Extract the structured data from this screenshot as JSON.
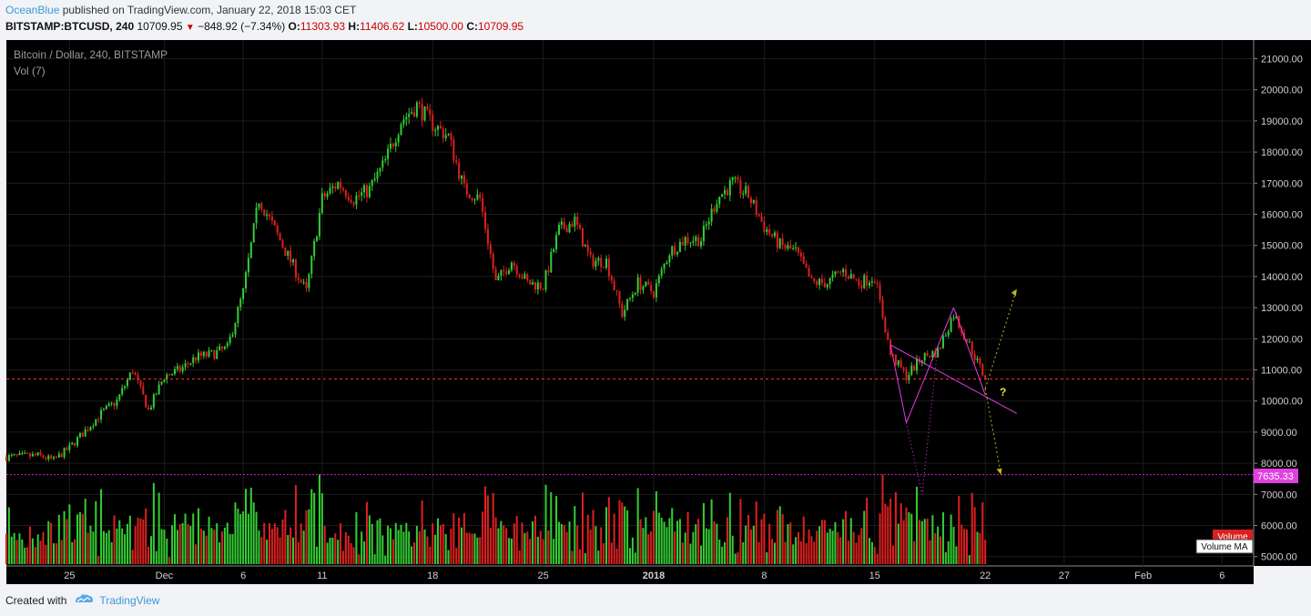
{
  "header": {
    "author": "OceanBlue",
    "published": "published on TradingView.com, January 22, 2018 15:03 CET",
    "symbol": "BITSTAMP:BTCUSD, 240",
    "last": "10709.95",
    "change_arrow": "▼",
    "change": "−848.92 (−7.34%)",
    "o_label": "O:",
    "o_value": "11303.93",
    "h_label": "H:",
    "h_value": "11406.62",
    "l_label": "L:",
    "l_value": "10500.00",
    "c_label": "C:",
    "c_value": "10709.95"
  },
  "legend": {
    "series": "Bitcoin / Dollar, 240, BITSTAMP",
    "volume": "Vol (7)"
  },
  "badges": {
    "support_price": "7635.33",
    "volume": "Volume",
    "volume_ma": "Volume MA"
  },
  "annotation": {
    "question": "?"
  },
  "footer": {
    "created": "Created with",
    "brand": "TradingView"
  },
  "colors": {
    "background": "#000000",
    "up": "#33cc33",
    "down": "#dd1f1f",
    "grid": "#1c1c1c",
    "current_price_line": "#ff2a2a",
    "support_line": "#cc22cc",
    "pattern": "#e23ee2",
    "projection": "#b8b818"
  },
  "chart_data": {
    "type": "candlestick",
    "interval": "240",
    "ylim": [
      4700,
      21600
    ],
    "y_ticks": [
      5000,
      6000,
      7000,
      8000,
      9000,
      10000,
      11000,
      12000,
      13000,
      14000,
      15000,
      16000,
      17000,
      18000,
      19000,
      20000,
      21000
    ],
    "y_tick_labels": [
      "5000.00",
      "6000.00",
      "7000.00",
      "8000.00",
      "9000.00",
      "10000.00",
      "11000.00",
      "12000.00",
      "13000.00",
      "14000.00",
      "15000.00",
      "16000.00",
      "17000.00",
      "18000.00",
      "19000.00",
      "20000.00",
      "21000.00"
    ],
    "x_range": [
      "2017-11-21",
      "2018-02-08"
    ],
    "x_ticks": [
      {
        "date": "2017-11-25",
        "label": "25"
      },
      {
        "date": "2017-12-01",
        "label": "Dec"
      },
      {
        "date": "2017-12-06",
        "label": "6"
      },
      {
        "date": "2017-12-11",
        "label": "11"
      },
      {
        "date": "2017-12-18",
        "label": "18"
      },
      {
        "date": "2017-12-25",
        "label": "25"
      },
      {
        "date": "2018-01-01",
        "label": "2018"
      },
      {
        "date": "2018-01-08",
        "label": "8"
      },
      {
        "date": "2018-01-15",
        "label": "15"
      },
      {
        "date": "2018-01-22",
        "label": "22"
      },
      {
        "date": "2018-01-27",
        "label": "27"
      },
      {
        "date": "2018-02-01",
        "label": "Feb"
      },
      {
        "date": "2018-02-06",
        "label": "6"
      }
    ],
    "price_path": [
      [
        "2017-11-21",
        8200
      ],
      [
        "2017-11-23",
        8250
      ],
      [
        "2017-11-24",
        8100
      ],
      [
        "2017-11-25",
        8500
      ],
      [
        "2017-11-27",
        9600
      ],
      [
        "2017-11-28",
        10000
      ],
      [
        "2017-11-29",
        11000
      ],
      [
        "2017-11-30",
        9700
      ],
      [
        "2017-12-01",
        10800
      ],
      [
        "2017-12-02",
        11000
      ],
      [
        "2017-12-03",
        11400
      ],
      [
        "2017-12-04",
        11500
      ],
      [
        "2017-12-05",
        11700
      ],
      [
        "2017-12-06",
        13500
      ],
      [
        "2017-12-07",
        16500
      ],
      [
        "2017-12-08",
        15500
      ],
      [
        "2017-12-09",
        14500
      ],
      [
        "2017-12-10",
        13500
      ],
      [
        "2017-12-11",
        16500
      ],
      [
        "2017-12-12",
        17000
      ],
      [
        "2017-12-13",
        16500
      ],
      [
        "2017-12-14",
        16800
      ],
      [
        "2017-12-15",
        17700
      ],
      [
        "2017-12-16",
        19000
      ],
      [
        "2017-12-17",
        19500
      ],
      [
        "2017-12-18",
        18900
      ],
      [
        "2017-12-19",
        18500
      ],
      [
        "2017-12-20",
        16800
      ],
      [
        "2017-12-21",
        16500
      ],
      [
        "2017-12-22",
        13800
      ],
      [
        "2017-12-23",
        14500
      ],
      [
        "2017-12-24",
        13800
      ],
      [
        "2017-12-25",
        13700
      ],
      [
        "2017-12-26",
        15500
      ],
      [
        "2017-12-27",
        15800
      ],
      [
        "2017-12-28",
        14500
      ],
      [
        "2017-12-29",
        14500
      ],
      [
        "2017-12-30",
        12800
      ],
      [
        "2017-12-31",
        13800
      ],
      [
        "2018-01-01",
        13500
      ],
      [
        "2018-01-02",
        14800
      ],
      [
        "2018-01-03",
        15200
      ],
      [
        "2018-01-04",
        15200
      ],
      [
        "2018-01-05",
        16500
      ],
      [
        "2018-01-06",
        17000
      ],
      [
        "2018-01-07",
        16600
      ],
      [
        "2018-01-08",
        15600
      ],
      [
        "2018-01-09",
        15000
      ],
      [
        "2018-01-10",
        14800
      ],
      [
        "2018-01-11",
        13800
      ],
      [
        "2018-01-12",
        13800
      ],
      [
        "2018-01-13",
        14200
      ],
      [
        "2018-01-14",
        13800
      ],
      [
        "2018-01-15",
        14000
      ],
      [
        "2018-01-16",
        11500
      ],
      [
        "2018-01-17",
        10800
      ],
      [
        "2018-01-18",
        11400
      ],
      [
        "2018-01-19",
        11600
      ],
      [
        "2018-01-20",
        12800
      ],
      [
        "2018-01-21",
        11800
      ],
      [
        "2018-01-22",
        10710
      ]
    ],
    "current_price": 10709.95,
    "support_level": 7635.33,
    "volume_ylim": [
      0,
      100
    ],
    "annotations": [
      "symmetrical triangle pattern",
      "projection up to 13600",
      "projection down to 7635.33"
    ]
  }
}
